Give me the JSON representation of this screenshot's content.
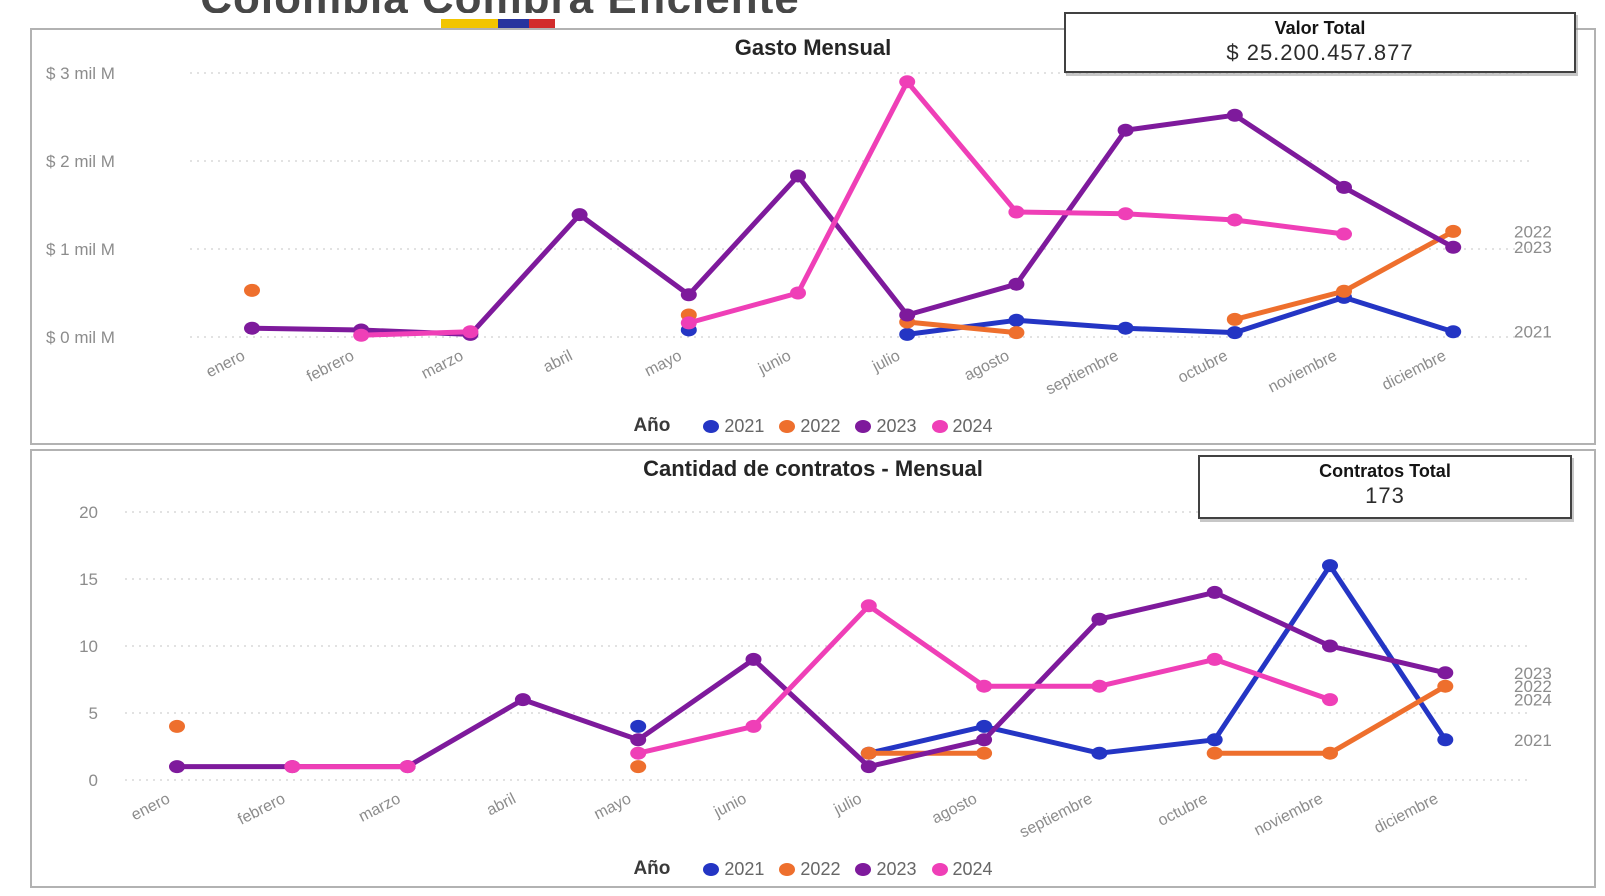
{
  "header": {
    "title": "Colombia Compra Eficiente",
    "flag_colors": [
      "#f2c500",
      "#27339e",
      "#d22c2c"
    ]
  },
  "kpis": {
    "valor": {
      "title": "Valor Total",
      "value": "$ 25.200.457.877"
    },
    "contratos": {
      "title": "Contratos Total",
      "value": "173"
    }
  },
  "legend": {
    "label": "Año"
  },
  "chart_data": [
    {
      "type": "line",
      "title": "Gasto Mensual",
      "categories": [
        "enero",
        "febrero",
        "marzo",
        "abril",
        "mayo",
        "junio",
        "julio",
        "agosto",
        "septiembre",
        "octubre",
        "noviembre",
        "diciembre"
      ],
      "ylabel": "$ mil M",
      "ylim": [
        0,
        3000
      ],
      "grid": true,
      "legend_position": "bottom",
      "y_ticks": [
        {
          "label": "$ 3 mil M",
          "value": 3000
        },
        {
          "label": "$ 2 mil M",
          "value": 2000
        },
        {
          "label": "$ 1 mil M",
          "value": 1000
        },
        {
          "label": "$ 0 mil M",
          "value": 0
        }
      ],
      "series": [
        {
          "name": "2021",
          "color": "#2435c4",
          "values": [
            null,
            null,
            null,
            null,
            80,
            null,
            30,
            190,
            100,
            50,
            450,
            60
          ]
        },
        {
          "name": "2022",
          "color": "#ee6f2d",
          "values": [
            530,
            null,
            null,
            null,
            250,
            null,
            170,
            50,
            null,
            200,
            520,
            1200
          ]
        },
        {
          "name": "2023",
          "color": "#7e1a9c",
          "values": [
            100,
            80,
            30,
            1390,
            480,
            1830,
            250,
            600,
            2350,
            2520,
            1700,
            1020
          ]
        },
        {
          "name": "2024",
          "color": "#ef3fb7",
          "values": [
            null,
            20,
            60,
            null,
            160,
            500,
            2900,
            1420,
            1400,
            1330,
            1170,
            null
          ]
        }
      ],
      "right_labels": [
        {
          "text": "2022",
          "value": 1200
        },
        {
          "text": "2023",
          "value": 1020
        },
        {
          "text": "2021",
          "value": 60
        }
      ]
    },
    {
      "type": "line",
      "title": "Cantidad de contratos - Mensual",
      "categories": [
        "enero",
        "febrero",
        "marzo",
        "abril",
        "mayo",
        "junio",
        "julio",
        "agosto",
        "septiembre",
        "octubre",
        "noviembre",
        "diciembre"
      ],
      "ylabel": "contratos",
      "ylim": [
        0,
        20
      ],
      "grid": true,
      "legend_position": "bottom",
      "y_ticks": [
        {
          "label": "20",
          "value": 20
        },
        {
          "label": "15",
          "value": 15
        },
        {
          "label": "10",
          "value": 10
        },
        {
          "label": "5",
          "value": 5
        },
        {
          "label": "0",
          "value": 0
        }
      ],
      "series": [
        {
          "name": "2021",
          "color": "#2435c4",
          "values": [
            null,
            null,
            null,
            null,
            4,
            null,
            2,
            4,
            2,
            3,
            16,
            3
          ]
        },
        {
          "name": "2022",
          "color": "#ee6f2d",
          "values": [
            4,
            null,
            null,
            null,
            1,
            null,
            2,
            2,
            null,
            2,
            2,
            7
          ]
        },
        {
          "name": "2023",
          "color": "#7e1a9c",
          "values": [
            1,
            1,
            1,
            6,
            3,
            9,
            1,
            3,
            12,
            14,
            10,
            8
          ]
        },
        {
          "name": "2024",
          "color": "#ef3fb7",
          "values": [
            null,
            1,
            1,
            null,
            2,
            4,
            13,
            7,
            7,
            9,
            6,
            null
          ]
        }
      ],
      "right_labels": [
        {
          "text": "2023",
          "value": 8
        },
        {
          "text": "2022",
          "value": 7
        },
        {
          "text": "2024",
          "value": 6
        },
        {
          "text": "2021",
          "value": 3
        }
      ]
    }
  ]
}
